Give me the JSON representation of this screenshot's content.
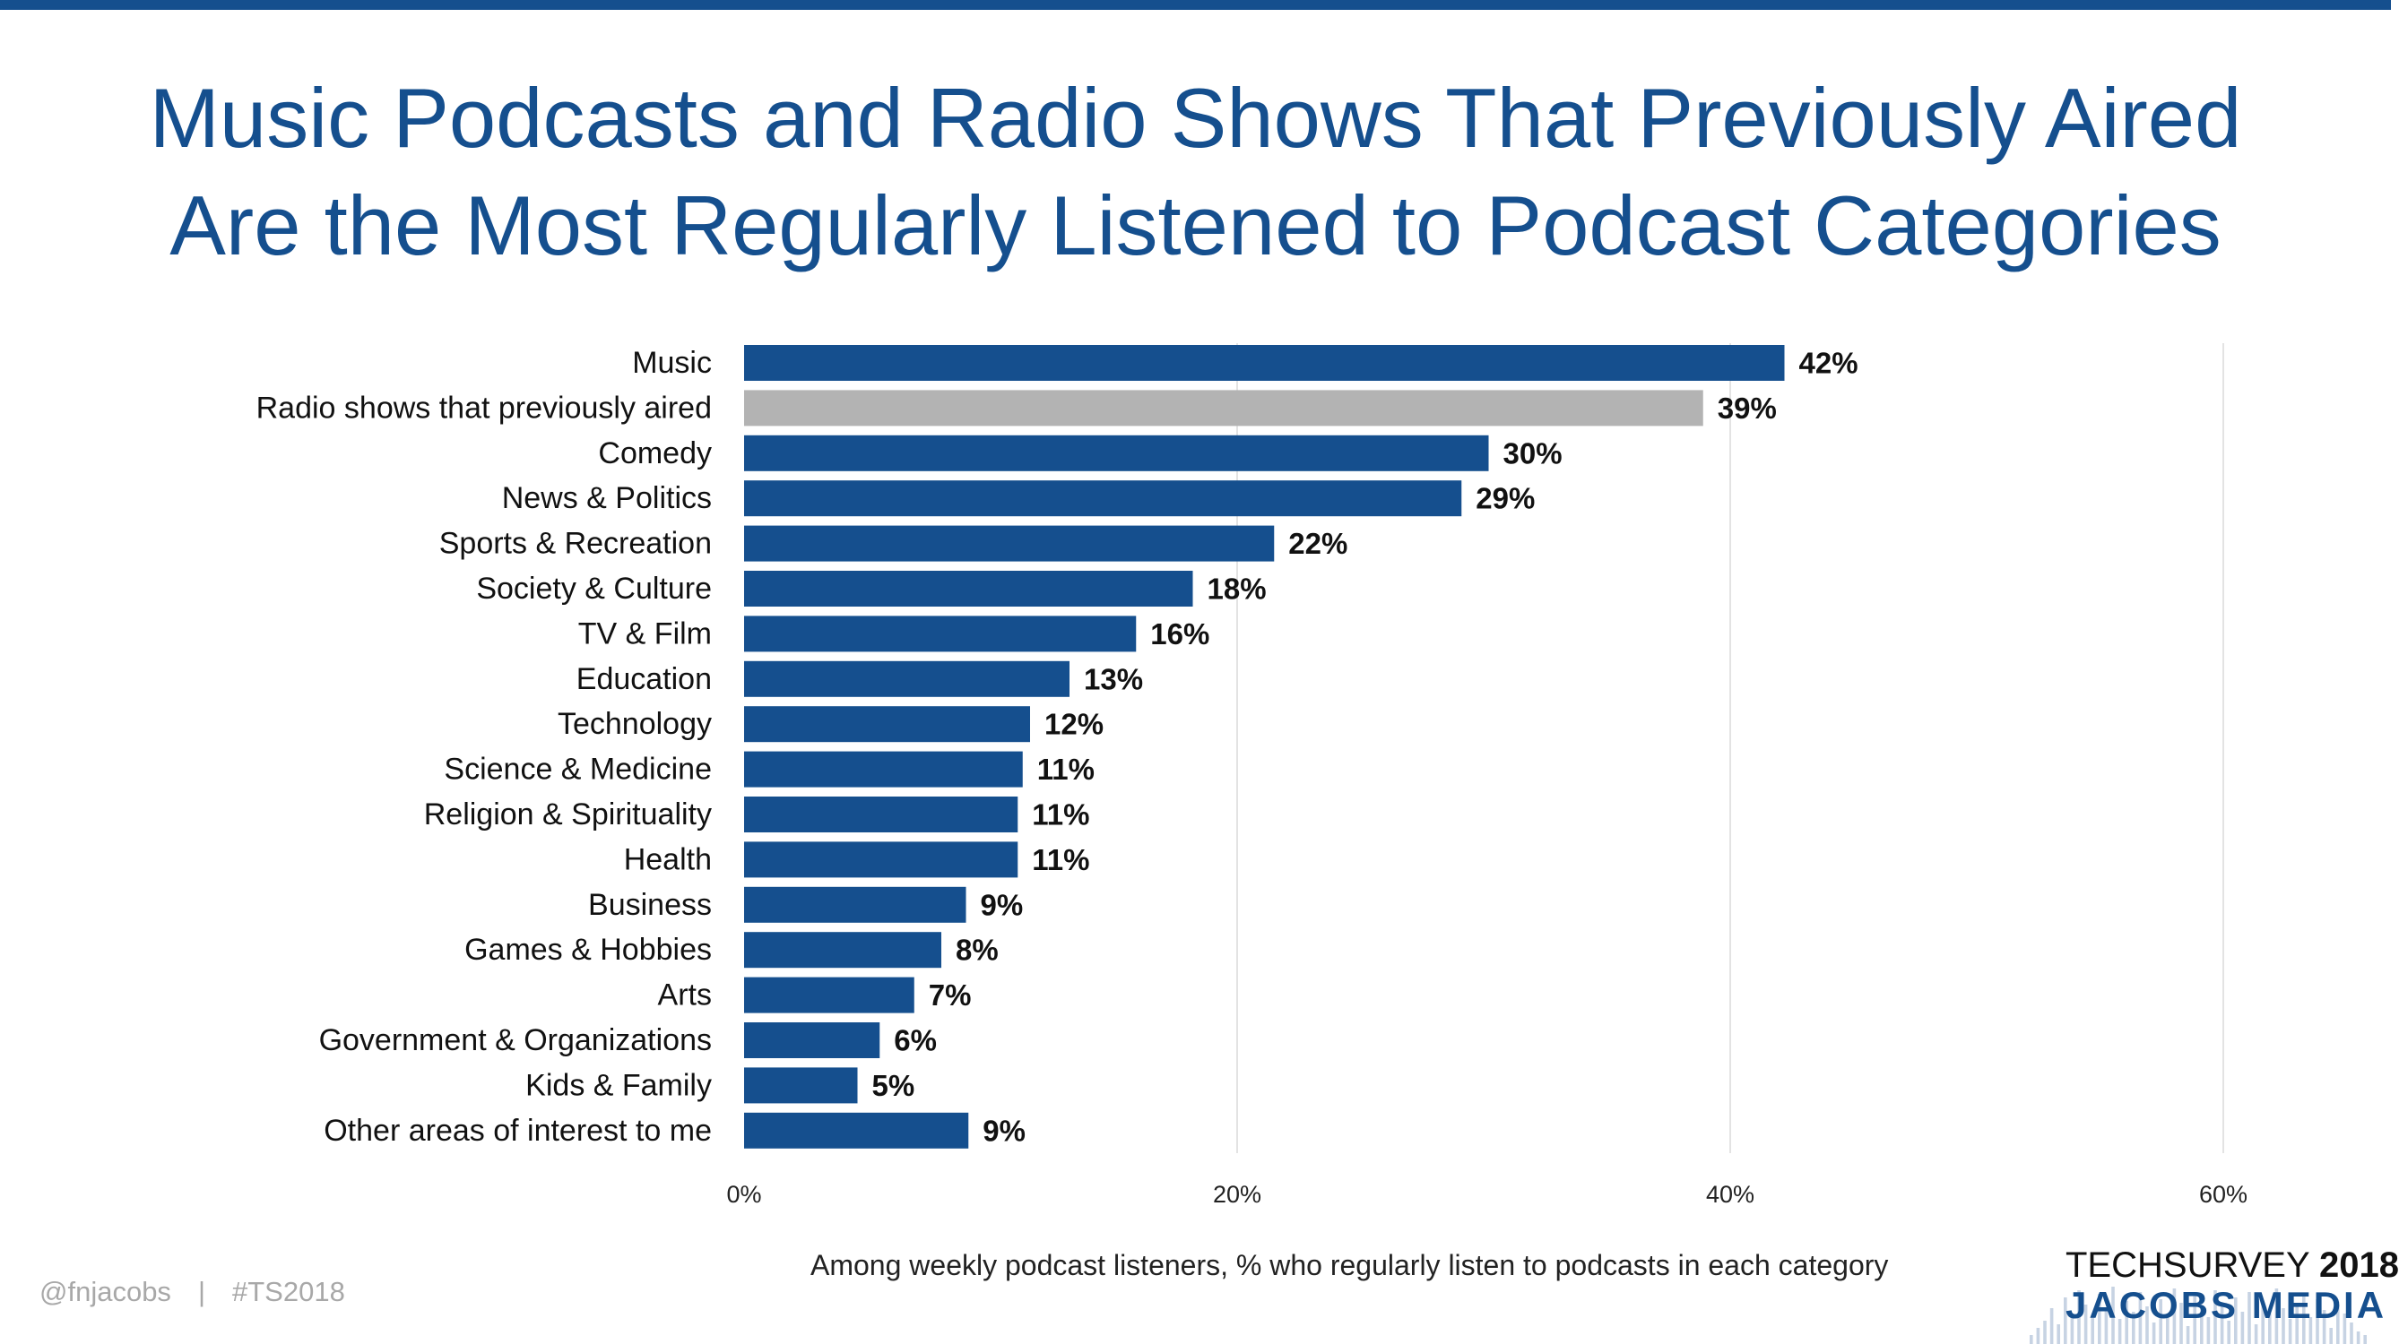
{
  "colors": {
    "accent": "#154f8e",
    "highlight": "#b3b3b3",
    "grid": "#e3e3e3",
    "text": "#111111",
    "tick": "#222222"
  },
  "title": {
    "line1": "Music Podcasts and Radio Shows That Previously Aired",
    "line2": "Are the Most Regularly Listened to Podcast Categories"
  },
  "footer": {
    "handle": "@fnjacobs",
    "separator": "|",
    "hashtag": "#TS2018"
  },
  "logo": {
    "line1_prefix": "TECHSURVEY ",
    "line1_year": "2018",
    "line2": "JACOBS MEDIA"
  },
  "chart_data": {
    "type": "bar",
    "orientation": "horizontal",
    "title": "Music Podcasts and Radio Shows That Previously Aired Are the Most Regularly Listened to Podcast Categories",
    "xlabel": "Among weekly podcast listeners, % who regularly listen to podcasts in each category",
    "ylabel": "",
    "xlim": [
      0,
      60
    ],
    "xticks": [
      0,
      20,
      40,
      60
    ],
    "xtick_labels": [
      "0%",
      "20%",
      "40%",
      "60%"
    ],
    "grid": true,
    "categories": [
      "Music",
      "Radio shows that previously aired",
      "Comedy",
      "News & Politics",
      "Sports & Recreation",
      "Society & Culture",
      "TV & Film",
      "Education",
      "Technology",
      "Science & Medicine",
      "Religion & Spirituality",
      "Health",
      "Business",
      "Games & Hobbies",
      "Arts",
      "Government & Organizations",
      "Kids & Family",
      "Other areas of interest to me"
    ],
    "values": [
      42.2,
      38.9,
      30.2,
      29.1,
      21.5,
      18.2,
      15.9,
      13.2,
      11.6,
      11.3,
      11.1,
      11.1,
      9.0,
      8.0,
      6.9,
      5.5,
      4.6,
      9.1
    ],
    "data_labels": [
      "42%",
      "39%",
      "30%",
      "29%",
      "22%",
      "18%",
      "16%",
      "13%",
      "12%",
      "11%",
      "11%",
      "11%",
      "9%",
      "8%",
      "7%",
      "6%",
      "5%",
      "9%"
    ],
    "highlighted": [
      "Radio shows that previously aired"
    ]
  }
}
